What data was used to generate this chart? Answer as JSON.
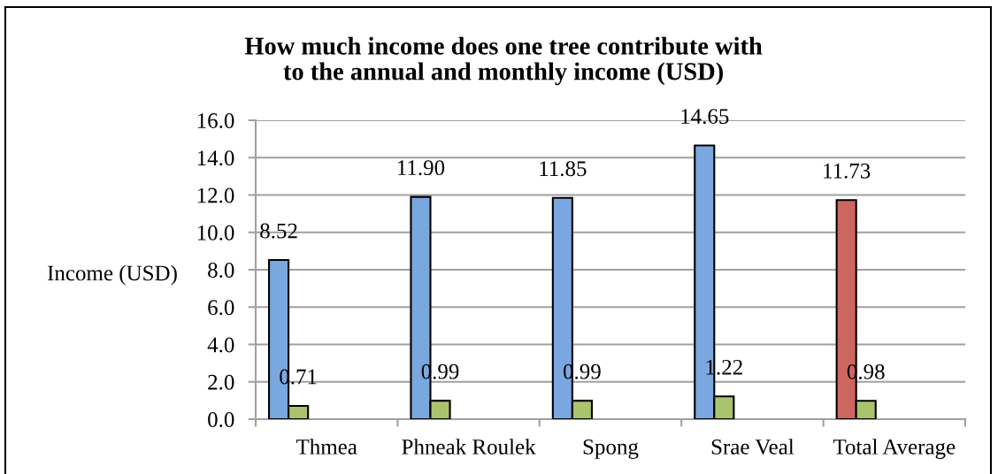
{
  "chart_data": {
    "type": "bar",
    "title": "How much income does one tree contribute with\nto the annual and monthly income (USD)",
    "ylabel": "Income (USD)",
    "categories": [
      "Thmea",
      "Phneak Roulek",
      "Spong",
      "Srae Veal",
      "Total Average"
    ],
    "series": [
      {
        "colors": [
          "#7ba7e0",
          "#7ba7e0",
          "#7ba7e0",
          "#7ba7e0",
          "#cd6660"
        ],
        "values": [
          8.52,
          11.9,
          11.85,
          14.65,
          11.73
        ],
        "value_labels": [
          "8.52",
          "11.90",
          "11.85",
          "14.65",
          "11.73"
        ]
      },
      {
        "color": "#a9c46c",
        "values": [
          0.71,
          0.99,
          0.99,
          1.22,
          0.98
        ],
        "value_labels": [
          "0.71",
          "0.99",
          "0.99",
          "1.22",
          "0.98"
        ]
      }
    ],
    "ylim": [
      0,
      16
    ],
    "yticks": [
      {
        "value": 0,
        "label": "0.0"
      },
      {
        "value": 2,
        "label": "2.0"
      },
      {
        "value": 4,
        "label": "4.0"
      },
      {
        "value": 6,
        "label": "6.0"
      },
      {
        "value": 8,
        "label": "8.0"
      },
      {
        "value": 10,
        "label": "10.0"
      },
      {
        "value": 12,
        "label": "12.0"
      },
      {
        "value": 14,
        "label": "14.0"
      },
      {
        "value": 16,
        "label": "16.0"
      }
    ],
    "grid": "y"
  }
}
